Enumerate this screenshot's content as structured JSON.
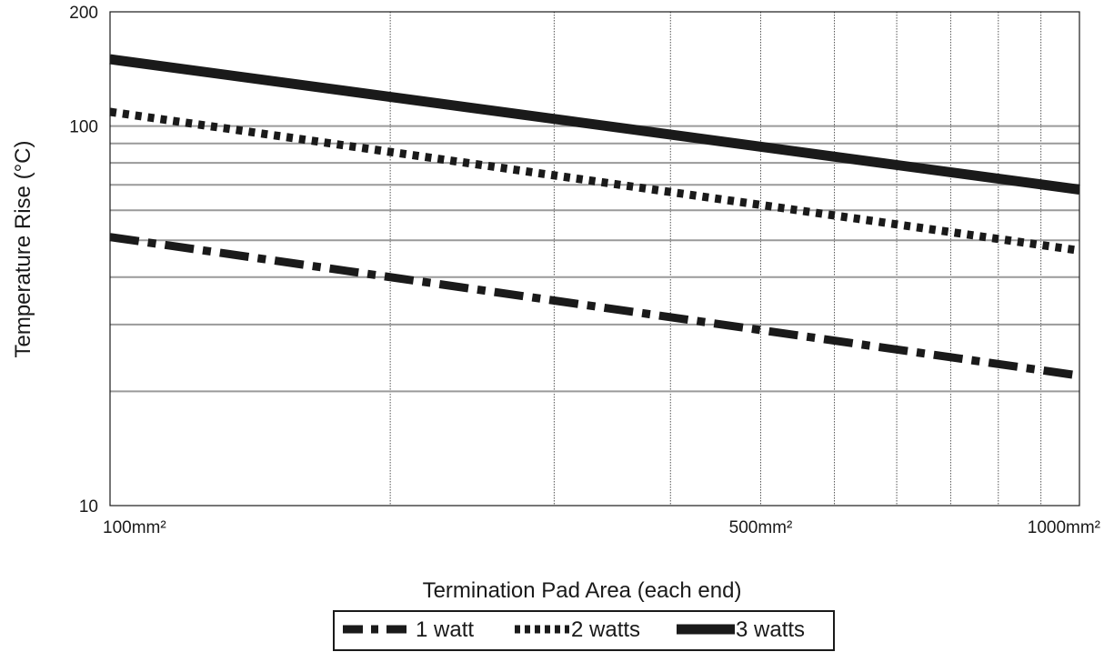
{
  "chart_data": {
    "type": "line",
    "xlabel": "Termination Pad Area (each end)",
    "ylabel": "Temperature Rise (°C)",
    "x_scale": "log",
    "y_scale": "log",
    "xlim": [
      100,
      1100
    ],
    "ylim": [
      10,
      200
    ],
    "x_tick_labels": [
      {
        "value": 100,
        "label": "100mm²"
      },
      {
        "value": 500,
        "label": "500mm²"
      },
      {
        "value": 1000,
        "label": "1000mm²"
      }
    ],
    "y_tick_labels": [
      {
        "value": 10,
        "label": "10"
      },
      {
        "value": 100,
        "label": "100"
      },
      {
        "value": 200,
        "label": "200"
      }
    ],
    "x_gridlines": [
      200,
      300,
      400,
      500,
      600,
      700,
      800,
      900,
      1000
    ],
    "y_gridlines": [
      20,
      30,
      40,
      50,
      60,
      70,
      80,
      90,
      100
    ],
    "grid": true,
    "legend_position": "bottom-center",
    "series": [
      {
        "name": "1 watt",
        "style": "dash-dot",
        "x": [
          100,
          1100
        ],
        "y": [
          51,
          22
        ]
      },
      {
        "name": "2 watts",
        "style": "dotted",
        "x": [
          100,
          1100
        ],
        "y": [
          109,
          47
        ]
      },
      {
        "name": "3 watts",
        "style": "solid",
        "x": [
          100,
          1100
        ],
        "y": [
          150,
          68
        ]
      }
    ]
  }
}
